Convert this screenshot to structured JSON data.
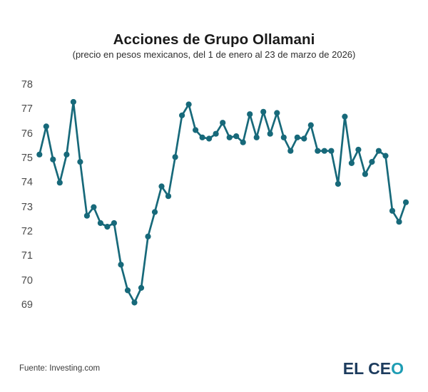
{
  "header": {
    "title": "Acciones de Grupo Ollamani",
    "subtitle": "(precio en pesos mexicanos, del 1 de enero al 23 de marzo de 2026)"
  },
  "footer": {
    "source": "Fuente: Investing.com",
    "logo_part1": "EL CE",
    "logo_part2": "O"
  },
  "colors": {
    "line": "#17697A",
    "marker": "#17697A",
    "axis_label": "#4b4b4b",
    "title": "#1a1a1a",
    "logo_navy": "#1d3c5e",
    "logo_teal": "#1e9db4"
  },
  "chart_data": {
    "type": "line",
    "title": "Acciones de Grupo Ollamani",
    "subtitle": "(precio en pesos mexicanos, del 1 de enero al 23 de marzo de 2026)",
    "period_label": "del 1 de enero al 23 de marzo de 2026",
    "source": "Fuente: Investing.com",
    "xlabel": "",
    "ylabel": "",
    "ylim": [
      69,
      78
    ],
    "yticks": [
      78,
      77,
      76,
      75,
      74,
      73,
      72,
      71,
      70,
      69
    ],
    "grid": false,
    "markers": true,
    "values": [
      75.15,
      76.3,
      74.95,
      74.0,
      75.15,
      77.3,
      74.85,
      72.65,
      73.0,
      72.35,
      72.2,
      72.35,
      70.65,
      69.6,
      69.1,
      69.7,
      71.8,
      72.8,
      73.85,
      73.45,
      75.05,
      76.75,
      77.2,
      76.15,
      75.85,
      75.8,
      76.0,
      76.45,
      75.85,
      75.9,
      75.65,
      76.8,
      75.85,
      76.9,
      76.0,
      76.85,
      75.85,
      75.3,
      75.85,
      75.8,
      76.35,
      75.3,
      75.3,
      75.3,
      73.95,
      76.7,
      74.8,
      75.35,
      74.35,
      74.85,
      75.3,
      75.1,
      72.85,
      72.4,
      73.2
    ]
  }
}
